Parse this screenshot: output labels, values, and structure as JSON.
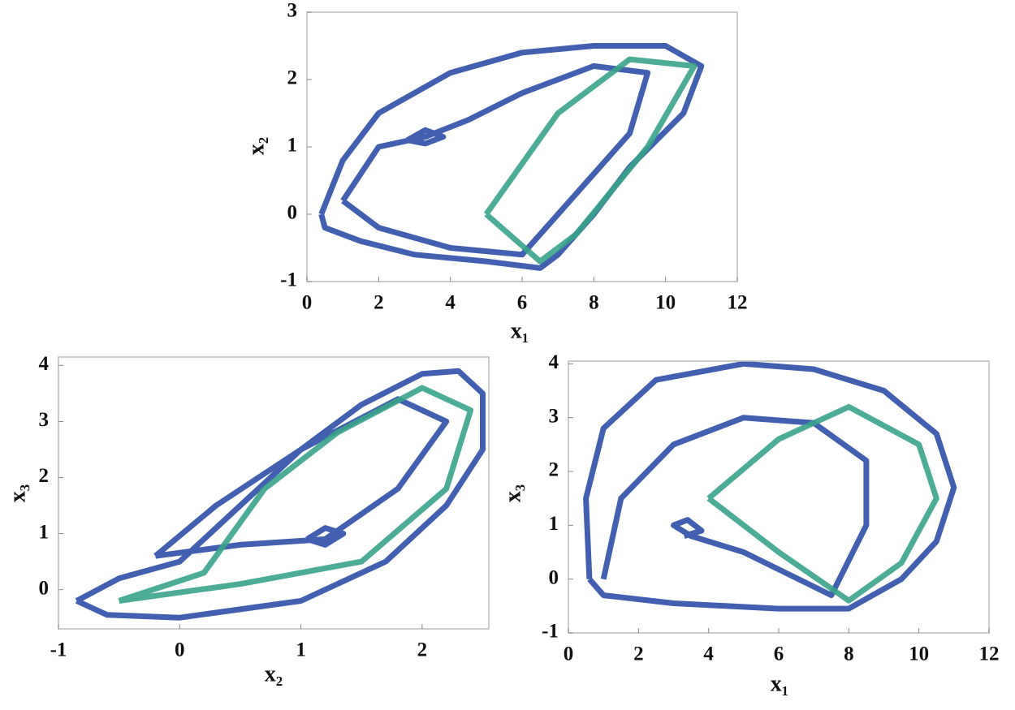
{
  "chart_data": [
    {
      "type": "line",
      "xlabel": "x₁",
      "ylabel": "x₂",
      "xlim": [
        0,
        12
      ],
      "ylim": [
        -1,
        3
      ],
      "xticks": [
        0,
        2,
        4,
        6,
        8,
        10,
        12
      ],
      "yticks": [
        -1,
        0,
        1,
        2,
        3
      ],
      "series": [
        {
          "color": "#2f4ea6",
          "x": [
            0.4,
            1,
            2,
            4,
            6,
            8,
            10,
            11,
            10.5,
            9,
            8,
            7,
            6.5,
            5,
            3,
            1.5,
            0.5,
            0.4,
            null,
            1,
            2,
            3.3,
            4.5,
            6,
            8,
            9.5,
            9,
            7,
            6,
            4,
            2,
            1,
            null,
            2.8,
            3.3,
            3.8,
            3.3,
            2.8
          ],
          "values": [
            0,
            0.8,
            1.5,
            2.1,
            2.4,
            2.5,
            2.5,
            2.2,
            1.5,
            0.7,
            0,
            -0.6,
            -0.8,
            -0.7,
            -0.6,
            -0.4,
            -0.2,
            0,
            null,
            0.2,
            1,
            1.15,
            1.4,
            1.8,
            2.2,
            2.1,
            1.2,
            0,
            -0.6,
            -0.5,
            -0.2,
            0.2,
            null,
            1.1,
            1.25,
            1.15,
            1.05,
            1.1
          ]
        },
        {
          "color": "#3aa38a",
          "x": [
            5,
            7,
            9,
            10.8,
            9.5,
            7.5,
            6.5,
            5
          ],
          "values": [
            0,
            1.5,
            2.3,
            2.2,
            1,
            -0.3,
            -0.7,
            0
          ]
        }
      ]
    },
    {
      "type": "line",
      "xlabel": "x₂",
      "ylabel": "x₃",
      "xlim": [
        -1,
        2.55
      ],
      "ylim": [
        -0.7,
        4.15
      ],
      "xticks": [
        -1,
        0,
        1,
        2
      ],
      "yticks": [
        0,
        1,
        2,
        3,
        4
      ],
      "series": [
        {
          "color": "#2f4ea6",
          "x": [
            -0.85,
            -0.5,
            0,
            0.5,
            1,
            1.5,
            2,
            2.3,
            2.5,
            2.5,
            2.2,
            1.7,
            1,
            0,
            -0.6,
            -0.85,
            null,
            -0.2,
            0.5,
            1.2,
            1.8,
            2.2,
            1.8,
            1,
            0.3,
            -0.2,
            null,
            1.05,
            1.2,
            1.35,
            1.2,
            1.05
          ],
          "values": [
            -0.2,
            0.2,
            0.5,
            1.5,
            2.5,
            3.3,
            3.85,
            3.9,
            3.5,
            2.5,
            1.5,
            0.5,
            -0.2,
            -0.5,
            -0.45,
            -0.2,
            null,
            0.6,
            0.8,
            0.9,
            1.8,
            3,
            3.4,
            2.5,
            1.5,
            0.6,
            null,
            0.9,
            1.1,
            1,
            0.8,
            0.9
          ]
        },
        {
          "color": "#3aa38a",
          "x": [
            -0.5,
            0.5,
            1.5,
            2.2,
            2.4,
            2,
            1.3,
            0.7,
            0.2,
            -0.5
          ],
          "values": [
            -0.2,
            0.1,
            0.5,
            1.8,
            3.2,
            3.6,
            2.8,
            1.8,
            0.3,
            -0.2
          ]
        }
      ]
    },
    {
      "type": "line",
      "xlabel": "x₁",
      "ylabel": "x₃",
      "xlim": [
        0,
        12
      ],
      "ylim": [
        -1,
        4.05
      ],
      "xticks": [
        0,
        2,
        4,
        6,
        8,
        10,
        12
      ],
      "yticks": [
        -1,
        0,
        1,
        2,
        3,
        4
      ],
      "series": [
        {
          "color": "#2f4ea6",
          "x": [
            0.6,
            0.5,
            1,
            2.5,
            5,
            7,
            9,
            10.5,
            11,
            10.5,
            9.5,
            8,
            6,
            3,
            1,
            0.6,
            null,
            1,
            1.5,
            3,
            5,
            7,
            8.5,
            8.5,
            7.5,
            5,
            3.5,
            3,
            3.4,
            3.8,
            3.3
          ],
          "values": [
            0,
            1.5,
            2.8,
            3.7,
            4,
            3.9,
            3.5,
            2.7,
            1.7,
            0.7,
            0,
            -0.55,
            -0.55,
            -0.45,
            -0.3,
            0,
            null,
            0,
            1.5,
            2.5,
            3,
            2.9,
            2.2,
            1,
            -0.3,
            0.5,
            0.8,
            1,
            1.1,
            0.9,
            0.8
          ]
        },
        {
          "color": "#3aa38a",
          "x": [
            4,
            6,
            8,
            10,
            10.5,
            9.5,
            8,
            6,
            4
          ],
          "values": [
            1.5,
            2.6,
            3.2,
            2.5,
            1.5,
            0.3,
            -0.4,
            0.5,
            1.5
          ]
        }
      ]
    }
  ]
}
